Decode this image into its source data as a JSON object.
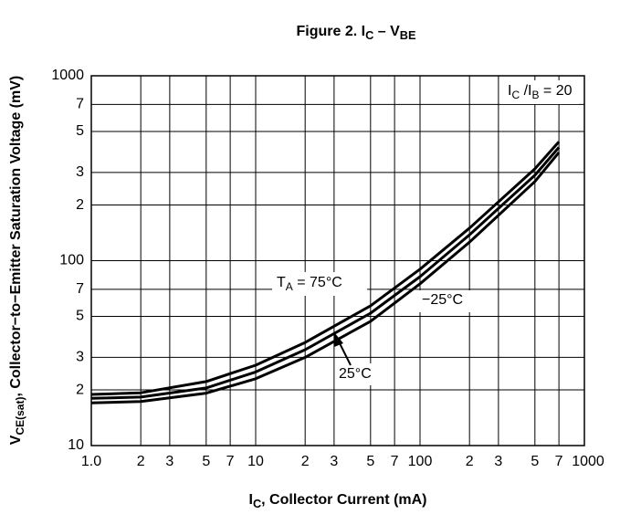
{
  "chart_data": {
    "type": "line",
    "title": [
      "Figure 2. I",
      "C",
      " – V",
      "BE"
    ],
    "xlabel": [
      "I",
      "C",
      ", Collector Current (mA)"
    ],
    "ylabel": [
      "V",
      "CE(sat)",
      ", Collector−to−Emitter Saturation Voltage (mV)"
    ],
    "xscale": "log",
    "yscale": "log",
    "grid": true,
    "xlim": [
      1,
      1000
    ],
    "ylim": [
      10,
      1000
    ],
    "xticks": [
      {
        "value": 1,
        "label": "1.0"
      },
      2,
      3,
      5,
      7,
      10,
      {
        "value": 20,
        "label": "2"
      },
      {
        "value": 30,
        "label": "3"
      },
      {
        "value": 50,
        "label": "5"
      },
      {
        "value": 70,
        "label": "7"
      },
      100,
      {
        "value": 200,
        "label": "2"
      },
      {
        "value": 300,
        "label": "3"
      },
      {
        "value": 500,
        "label": "5"
      },
      {
        "value": 700,
        "label": "7"
      },
      1000
    ],
    "yticks": [
      10,
      {
        "value": 20,
        "label": "2"
      },
      {
        "value": 30,
        "label": "3"
      },
      {
        "value": 50,
        "label": "5"
      },
      {
        "value": 70,
        "label": "7"
      },
      100,
      {
        "value": 200,
        "label": "2"
      },
      {
        "value": 300,
        "label": "3"
      },
      {
        "value": 500,
        "label": "5"
      },
      {
        "value": 700,
        "label": "7"
      },
      1000
    ],
    "x": [
      1,
      2,
      5,
      10,
      20,
      50,
      100,
      200,
      500,
      700
    ],
    "series": [
      {
        "color": "#000000",
        "values": [
          18.9,
          19.3,
          22.2,
          27.2,
          36.1,
          57,
          90,
          150,
          314,
          440
        ]
      },
      {
        "color": "#000000",
        "values": [
          18,
          18.3,
          20.5,
          25,
          33,
          52,
          82,
          138,
          290,
          410
        ]
      },
      {
        "color": "#000000",
        "values": [
          17,
          17.3,
          19.2,
          23,
          30,
          47,
          75,
          126,
          268,
          385
        ]
      }
    ],
    "annotations": {
      "ratio": [
        "I",
        "C",
        " /I",
        "B",
        " = 20"
      ],
      "t75": [
        "T",
        "A",
        " = 75°C"
      ],
      "tm25": [
        "−25°C"
      ],
      "t25": [
        "25°C"
      ]
    }
  }
}
